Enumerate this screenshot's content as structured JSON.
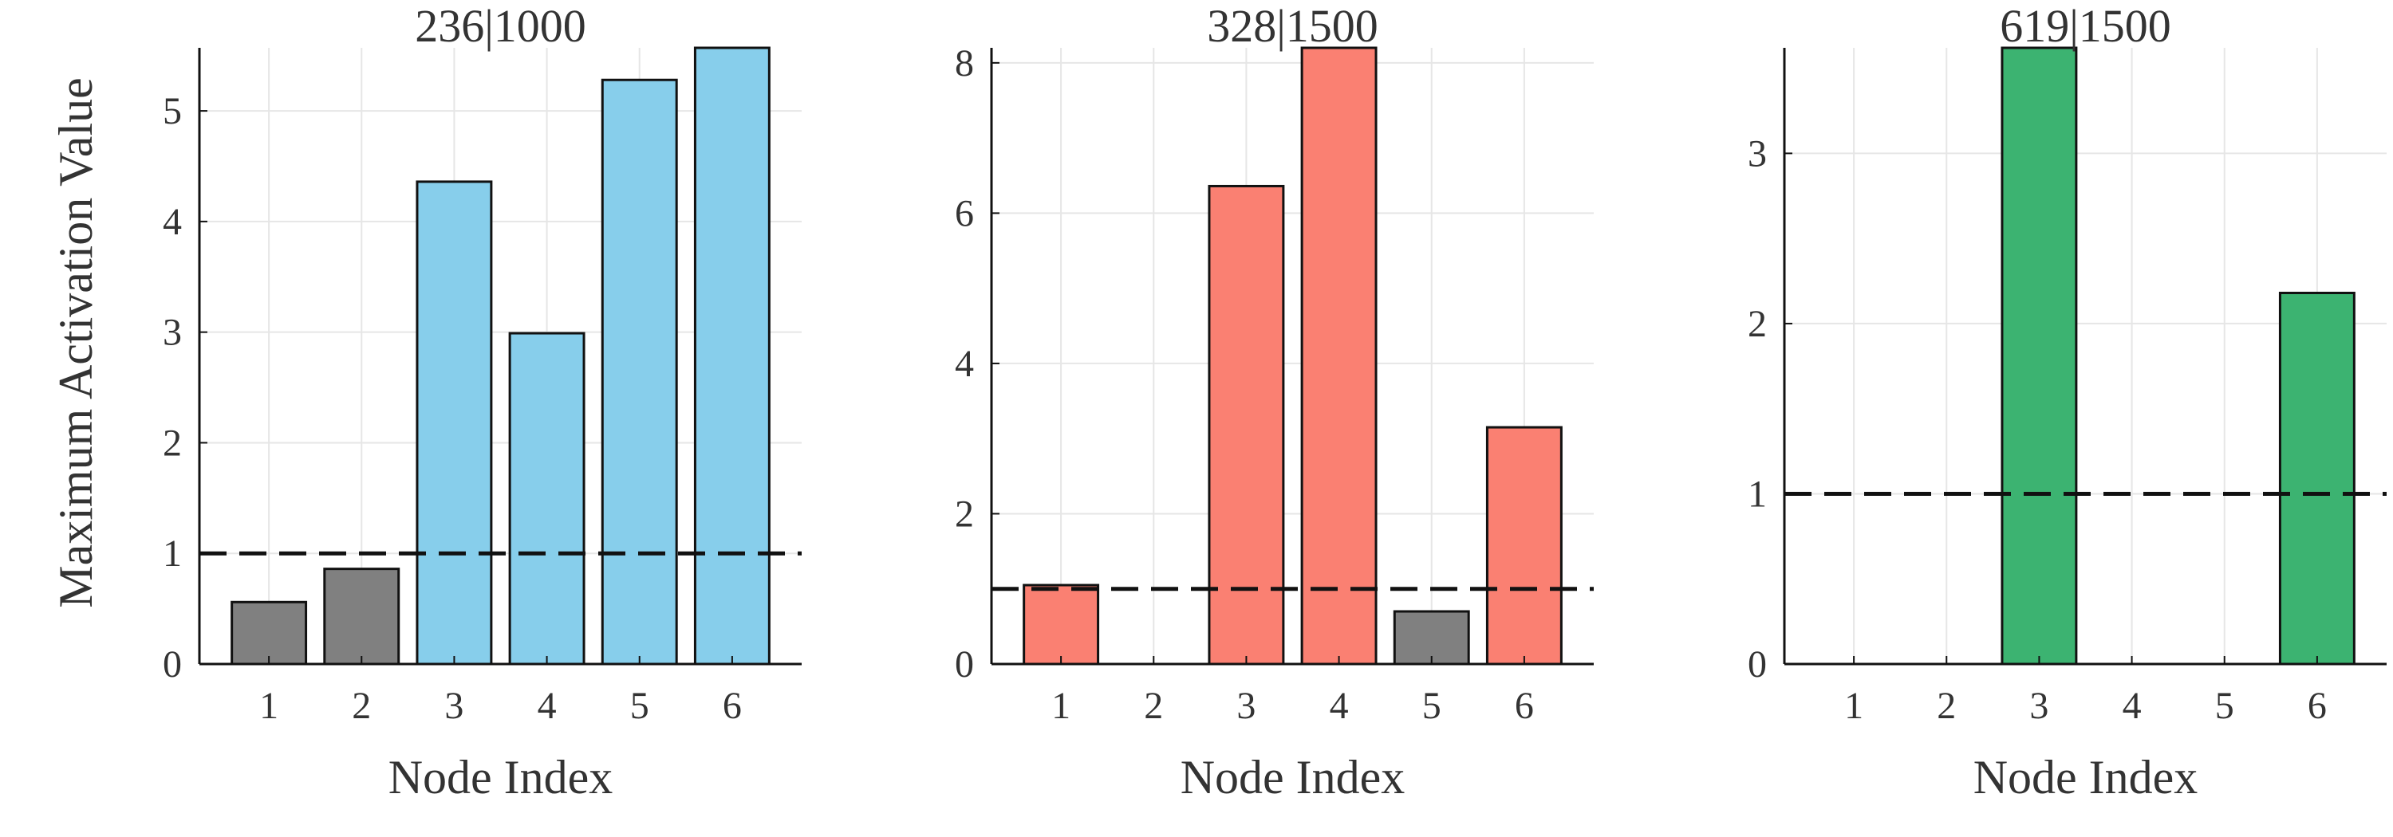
{
  "chart_data": [
    {
      "type": "bar",
      "title": "236|1000",
      "xlabel": "Node Index",
      "ylabel": "Maximum Activation Value",
      "categories": [
        "1",
        "2",
        "3",
        "4",
        "5",
        "6"
      ],
      "values": [
        0.56,
        0.86,
        4.36,
        2.99,
        5.28,
        5.57
      ],
      "bar_colors": [
        "#808080",
        "#808080",
        "#87ceeb",
        "#87ceeb",
        "#87ceeb",
        "#87ceeb"
      ],
      "ylim": [
        0,
        5.57
      ],
      "yticks": [
        0,
        1,
        2,
        3,
        4,
        5
      ],
      "threshold": 1,
      "grid": true
    },
    {
      "type": "bar",
      "title": "328|1500",
      "xlabel": "Node Index",
      "ylabel": "",
      "categories": [
        "1",
        "2",
        "3",
        "4",
        "5",
        "6"
      ],
      "values": [
        1.05,
        0,
        6.36,
        8.2,
        0.7,
        3.15
      ],
      "bar_colors": [
        "#fa8072",
        "#fa8072",
        "#fa8072",
        "#fa8072",
        "#808080",
        "#fa8072"
      ],
      "ylim": [
        0,
        8.2
      ],
      "yticks": [
        0,
        2,
        4,
        6,
        8
      ],
      "threshold": 1,
      "grid": true
    },
    {
      "type": "bar",
      "title": "619|1500",
      "xlabel": "Node Index",
      "ylabel": "",
      "categories": [
        "1",
        "2",
        "3",
        "4",
        "5",
        "6"
      ],
      "values": [
        0,
        0,
        3.62,
        0,
        0,
        2.18
      ],
      "bar_colors": [
        "#3cb371",
        "#3cb371",
        "#3cb371",
        "#3cb371",
        "#3cb371",
        "#3cb371"
      ],
      "ylim": [
        0,
        3.62
      ],
      "yticks": [
        0,
        1,
        2,
        3
      ],
      "threshold": 1,
      "grid": true
    }
  ]
}
